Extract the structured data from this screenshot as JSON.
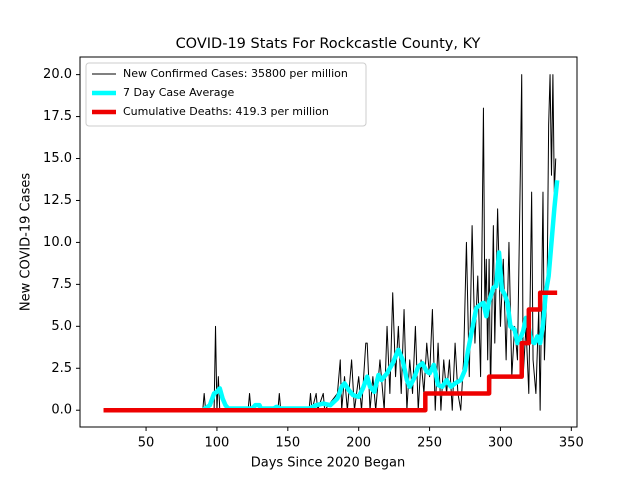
{
  "chart_data": {
    "type": "line",
    "title": "COVID-19 Stats For Rockcastle County, KY",
    "xlabel": "Days Since 2020 Began",
    "ylabel": "New COVID-19 Cases",
    "xlim": [
      3.4,
      354
    ],
    "ylim": [
      -1.0,
      21.05
    ],
    "xticks": [
      50,
      100,
      150,
      200,
      250,
      300,
      350
    ],
    "yticks": [
      {
        "value": 0,
        "label": "0.0"
      },
      2.5,
      {
        "value": 5,
        "label": "5.0"
      },
      7.5,
      {
        "value": 10,
        "label": "10.0"
      },
      12.5,
      {
        "value": 15,
        "label": "15.0"
      },
      17.5,
      {
        "value": 20,
        "label": "20.0"
      }
    ],
    "legend": "upper left",
    "series": [
      {
        "name": "New Confirmed Cases: 35800 per million",
        "color": "#000000",
        "linewidth": 1,
        "x": [
          20,
          90,
          91,
          92,
          98,
          99,
          100,
          101,
          102,
          122,
          123,
          124,
          143,
          144,
          145,
          165,
          166,
          167,
          170,
          171,
          175,
          176,
          185,
          187,
          188,
          190,
          192,
          195,
          197,
          200,
          202,
          205,
          206,
          208,
          210,
          212,
          215,
          218,
          220,
          222,
          224,
          226,
          228,
          230,
          232,
          234,
          236,
          238,
          240,
          242,
          244,
          246,
          248,
          250,
          252,
          254,
          256,
          258,
          260,
          262,
          264,
          266,
          268,
          270,
          272,
          274,
          276,
          278,
          280,
          282,
          284,
          286,
          288,
          289,
          290,
          291,
          292,
          293,
          295,
          296,
          298,
          300,
          302,
          304,
          306,
          308,
          310,
          312,
          314,
          315,
          316,
          318,
          320,
          322,
          323,
          325,
          327,
          328,
          330,
          331,
          333,
          334,
          335,
          336,
          337,
          338,
          339
        ],
        "values": [
          0,
          0,
          1,
          0,
          0,
          5,
          0,
          2,
          0,
          0,
          1,
          0,
          0,
          1,
          0,
          0,
          1,
          0,
          1,
          0,
          1,
          0,
          1,
          3,
          0,
          2,
          0,
          3,
          0,
          2,
          0,
          4,
          4,
          0,
          2,
          0,
          3,
          0,
          5,
          1,
          7,
          2,
          5,
          1,
          6,
          0,
          3,
          1,
          5,
          0,
          3,
          1,
          4,
          2,
          6,
          0,
          4,
          0,
          3,
          1,
          3,
          0,
          4,
          1,
          0,
          3,
          10,
          2,
          11,
          4,
          8,
          2,
          18,
          6,
          9,
          3,
          9,
          1,
          11,
          4,
          12,
          5,
          9,
          3,
          10,
          2,
          5,
          3,
          14,
          20,
          2,
          5,
          1,
          13,
          3,
          1,
          6,
          0,
          13,
          3,
          8,
          17,
          20,
          14,
          20,
          13,
          15
        ]
      },
      {
        "name": "7 Day Case Average",
        "color": "#00ffff",
        "linewidth": 4.5,
        "x": [
          90,
          95,
          98,
          100,
          102,
          104,
          106,
          108,
          125,
          127,
          130,
          131,
          140,
          142,
          145,
          165,
          170,
          175,
          180,
          185,
          188,
          190,
          193,
          196,
          200,
          203,
          206,
          208,
          211,
          214,
          216,
          220,
          224,
          228,
          231,
          234,
          236,
          239,
          242,
          245,
          248,
          250,
          253,
          256,
          259,
          262,
          265,
          268,
          272,
          275,
          277,
          280,
          283,
          286,
          288,
          290,
          292,
          295,
          297,
          299,
          301,
          303,
          305,
          307,
          310,
          312,
          314,
          316,
          318,
          320,
          322,
          324,
          326,
          328,
          330,
          332,
          334,
          336,
          338,
          340
        ],
        "values": [
          0,
          0.3,
          1,
          1.1,
          1.3,
          0.7,
          0.3,
          0.1,
          0.1,
          0.3,
          0.3,
          0.1,
          0.1,
          0.2,
          0.1,
          0.1,
          0.3,
          0.4,
          0.3,
          0.7,
          1.4,
          1.6,
          1.2,
          0.9,
          0.8,
          1.3,
          2.0,
          1.4,
          1.1,
          2.1,
          1.8,
          2.2,
          2.8,
          3.6,
          3.0,
          1.8,
          1.4,
          1.9,
          2.6,
          2.8,
          2.3,
          2.2,
          2.7,
          1.5,
          1.4,
          1.8,
          1.4,
          1.6,
          1.8,
          2.4,
          3.5,
          4.8,
          6.1,
          6.3,
          6.4,
          5.6,
          6.5,
          7.3,
          7.4,
          9.4,
          7.2,
          6.9,
          6.4,
          5.0,
          4.8,
          4.0,
          4.3,
          4.7,
          5.5,
          4.9,
          4.1,
          4.0,
          4.4,
          4.0,
          5.1,
          7.0,
          8.0,
          10.0,
          12.0,
          13.7
        ]
      },
      {
        "name": "Cumulative Deaths: 419.3 per million",
        "color": "#ee0000",
        "linewidth": 4.5,
        "x": [
          20,
          247,
          247,
          292,
          292,
          315,
          315,
          320,
          320,
          328,
          328,
          340
        ],
        "values": [
          0,
          0,
          1,
          1,
          2,
          2,
          4,
          4,
          6,
          6,
          7,
          7
        ]
      }
    ]
  }
}
